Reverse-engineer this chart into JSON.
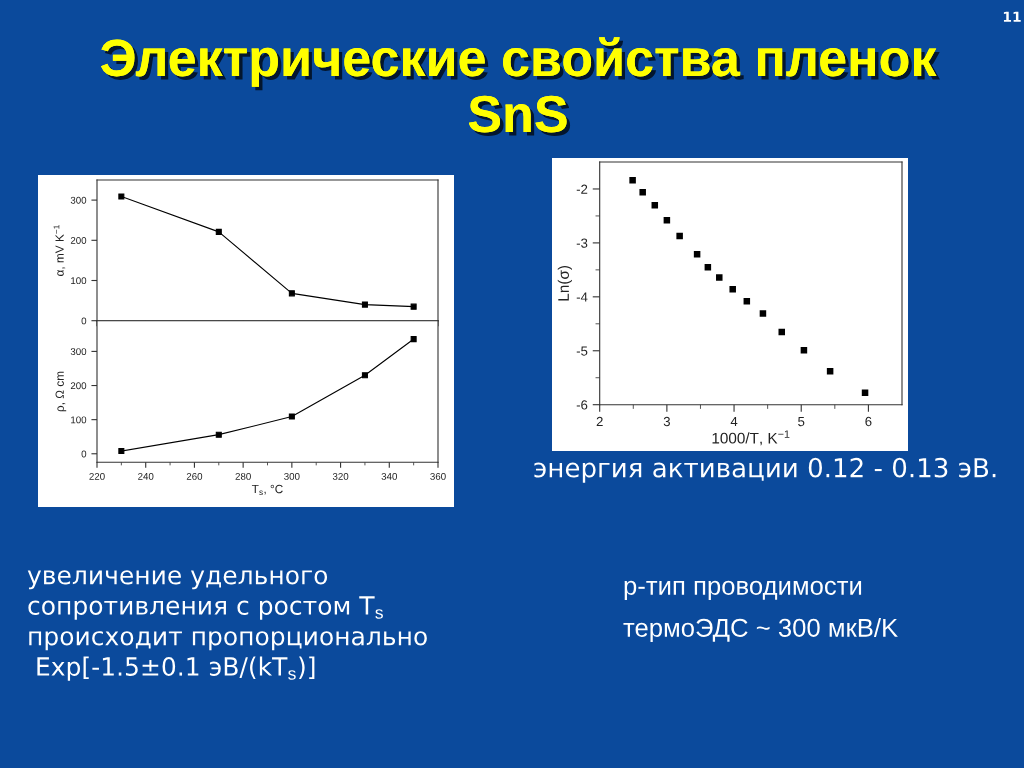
{
  "chart_data": [
    {
      "type": "line",
      "title": "Электрические свойства пленок\nSnS",
      "ylabel": "α, mV K$^{−1}$",
      "x": [
        230,
        270,
        300,
        330,
        350
      ],
      "series": [
        {
          "color": "#000000",
          "values": [
            309,
            221,
            68,
            40,
            35
          ]
        }
      ],
      "xlim": [
        220,
        360
      ],
      "xticks": [
        220,
        {
          "value": 230,
          "label": null
        },
        240,
        {
          "value": 250,
          "label": null
        },
        260,
        {
          "value": 270,
          "label": null
        },
        280,
        {
          "value": 290,
          "label": null
        },
        300,
        {
          "value": 310,
          "label": null
        },
        320,
        {
          "value": 330,
          "label": null
        },
        340,
        {
          "value": 350,
          "label": null
        },
        360
      ],
      "ylim": [
        0,
        350
      ],
      "yticks": [
        0,
        100,
        200,
        300
      ],
      "tick_labels": "y",
      "marker": "square",
      "line_style": "solid",
      "annotations": [
        "11"
      ]
    },
    {
      "type": "line",
      "xlabel": "T$_{s}$, °C",
      "ylabel": "ρ, Ω cm",
      "x": [
        230,
        270,
        300,
        330,
        350
      ],
      "series": [
        {
          "color": "#000000",
          "values": [
            8,
            56,
            109,
            230,
            336
          ]
        }
      ],
      "xlim": [
        220,
        360
      ],
      "xticks": [
        220,
        {
          "value": 230,
          "label": null
        },
        240,
        {
          "value": 250,
          "label": null
        },
        260,
        {
          "value": 270,
          "label": null
        },
        280,
        {
          "value": 290,
          "label": null
        },
        300,
        {
          "value": 310,
          "label": null
        },
        320,
        {
          "value": 330,
          "label": null
        },
        340,
        {
          "value": 350,
          "label": null
        },
        360
      ],
      "ylim": [
        -25,
        390
      ],
      "yticks": [
        0,
        100,
        200,
        300
      ],
      "marker": "square",
      "line_style": "solid",
      "annotations": [
        "увеличение удельного\nсопротивления с ростом T$_{s}$\nпроисходит пропорционально\n Exp[-1.5±0.1 эВ/(kT$_{s}$)]"
      ]
    },
    {
      "type": "scatter",
      "xlabel": "1000/T, K$^{−1}$",
      "ylabel": "Ln(σ)",
      "x": [
        2.49,
        2.64,
        2.82,
        3.0,
        3.19,
        3.45,
        3.61,
        3.78,
        3.98,
        4.19,
        4.43,
        4.71,
        5.04,
        5.43,
        5.95
      ],
      "series": [
        {
          "color": "#000000",
          "values": [
            -1.84,
            -2.06,
            -2.3,
            -2.58,
            -2.87,
            -3.21,
            -3.45,
            -3.64,
            -3.86,
            -4.08,
            -4.31,
            -4.65,
            -4.99,
            -5.38,
            -5.78
          ]
        }
      ],
      "xlim": [
        2,
        6.5
      ],
      "xticks": [
        2,
        {
          "value": 2.5,
          "label": null
        },
        3,
        {
          "value": 3.5,
          "label": null
        },
        4,
        {
          "value": 4.5,
          "label": null
        },
        5,
        {
          "value": 5.5,
          "label": null
        },
        6
      ],
      "ylim": [
        -6,
        -1.5
      ],
      "yticks": [
        -6,
        {
          "value": -5.5,
          "label": null
        },
        -5,
        {
          "value": -4.5,
          "label": null
        },
        -4,
        {
          "value": -3.5,
          "label": null
        },
        -3,
        {
          "value": -2.5,
          "label": null
        },
        -2
      ],
      "marker": "square",
      "annotations": [
        "энергия активации 0.12 - 0.13 эВ.",
        "p-тип проводимости",
        "термоЭДС ~ 300 мкВ/K"
      ]
    }
  ]
}
